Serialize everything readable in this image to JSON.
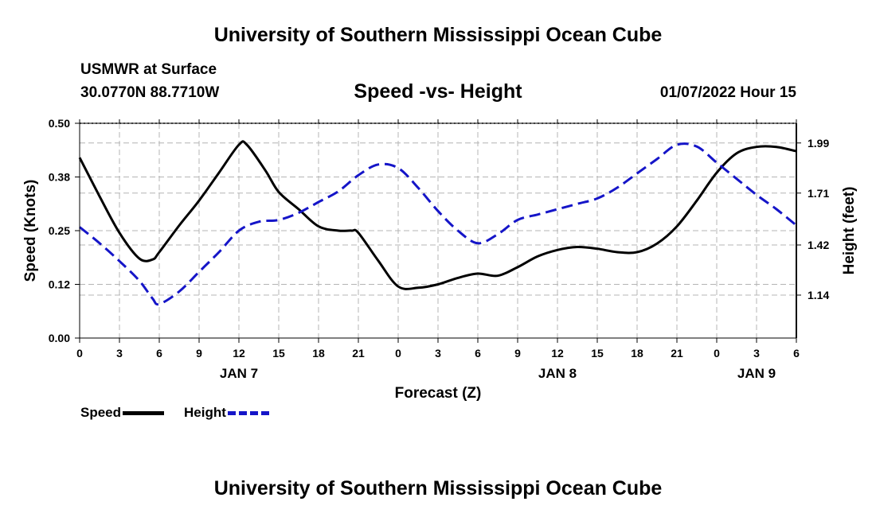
{
  "header": {
    "title": "University of Southern Mississippi Ocean Cube",
    "station": "USMWR at Surface",
    "coords": "30.0770N  88.7710W",
    "subtitle": "Speed -vs- Height",
    "datetime": "01/07/2022 Hour 15"
  },
  "footer": {
    "title": "University of Southern Mississippi Ocean Cube"
  },
  "legend": {
    "speed_label": "Speed",
    "height_label": "Height"
  },
  "colors": {
    "speed": "#000000",
    "height": "#1515c8",
    "grid": "#b4b4b4"
  },
  "chart_data": {
    "type": "line",
    "title": "Speed -vs- Height",
    "xlabel": "Forecast (Z)",
    "ylabel": "Speed (Knots)",
    "y2label": "Height (feet)",
    "grid": true,
    "x_hours_range": [
      0,
      54
    ],
    "x_ticks": [
      {
        "h": 0,
        "label": "0"
      },
      {
        "h": 3,
        "label": "3"
      },
      {
        "h": 6,
        "label": "6"
      },
      {
        "h": 9,
        "label": "9"
      },
      {
        "h": 12,
        "label": "12"
      },
      {
        "h": 15,
        "label": "15"
      },
      {
        "h": 18,
        "label": "18"
      },
      {
        "h": 21,
        "label": "21"
      },
      {
        "h": 24,
        "label": "0"
      },
      {
        "h": 27,
        "label": "3"
      },
      {
        "h": 30,
        "label": "6"
      },
      {
        "h": 33,
        "label": "9"
      },
      {
        "h": 36,
        "label": "12"
      },
      {
        "h": 39,
        "label": "15"
      },
      {
        "h": 42,
        "label": "18"
      },
      {
        "h": 45,
        "label": "21"
      },
      {
        "h": 48,
        "label": "0"
      },
      {
        "h": 51,
        "label": "3"
      },
      {
        "h": 54,
        "label": "6"
      }
    ],
    "day_labels": [
      {
        "h": 12,
        "label": "JAN 7"
      },
      {
        "h": 36,
        "label": "JAN 8"
      },
      {
        "h": 51,
        "label": "JAN 9"
      }
    ],
    "ylim": [
      0,
      0.5
    ],
    "y_ticks": [
      {
        "v": 0.0,
        "label": "0.00"
      },
      {
        "v": 0.125,
        "label": "0.12"
      },
      {
        "v": 0.25,
        "label": "0.25"
      },
      {
        "v": 0.375,
        "label": "0.38"
      },
      {
        "v": 0.5,
        "label": "0.50"
      }
    ],
    "y2lim": [
      0.9,
      2.1
    ],
    "y2_ticks": [
      {
        "v": 1.14,
        "label": "1.14"
      },
      {
        "v": 1.42,
        "label": "1.42"
      },
      {
        "v": 1.71,
        "label": "1.71"
      },
      {
        "v": 1.99,
        "label": "1.99"
      }
    ],
    "series": [
      {
        "name": "Speed",
        "axis": "left",
        "x": [
          0,
          1.5,
          3,
          4.5,
          5.5,
          6,
          7.5,
          9,
          10.5,
          12,
          12.6,
          14,
          15,
          16.5,
          18,
          19.5,
          20.5,
          21,
          22.5,
          24,
          25.5,
          27,
          28.5,
          30,
          31.5,
          33,
          34.5,
          36,
          37.5,
          39,
          40.5,
          42,
          43.5,
          45,
          46.5,
          48,
          49.5,
          51,
          52.5,
          54
        ],
        "values": [
          0.42,
          0.33,
          0.245,
          0.185,
          0.183,
          0.2,
          0.262,
          0.32,
          0.385,
          0.45,
          0.45,
          0.39,
          0.34,
          0.3,
          0.26,
          0.25,
          0.25,
          0.245,
          0.18,
          0.12,
          0.117,
          0.125,
          0.14,
          0.15,
          0.145,
          0.165,
          0.19,
          0.205,
          0.212,
          0.208,
          0.2,
          0.2,
          0.22,
          0.26,
          0.32,
          0.385,
          0.43,
          0.445,
          0.445,
          0.435
        ]
      },
      {
        "name": "Height",
        "axis": "right",
        "x": [
          0,
          1.5,
          3,
          4.5,
          5.5,
          6,
          7.5,
          9,
          10.5,
          12,
          13.5,
          15,
          16.5,
          18,
          19.5,
          21,
          22.5,
          24,
          25.5,
          27,
          28.5,
          30,
          31.5,
          33,
          34.5,
          36,
          37.5,
          39,
          40.5,
          42,
          43.5,
          45,
          46.5,
          48,
          49.5,
          51,
          52.5,
          54
        ],
        "values": [
          1.52,
          1.43,
          1.33,
          1.22,
          1.12,
          1.09,
          1.16,
          1.27,
          1.38,
          1.5,
          1.55,
          1.56,
          1.6,
          1.66,
          1.72,
          1.81,
          1.87,
          1.85,
          1.74,
          1.61,
          1.5,
          1.43,
          1.48,
          1.56,
          1.59,
          1.62,
          1.65,
          1.68,
          1.74,
          1.82,
          1.9,
          1.98,
          1.97,
          1.88,
          1.79,
          1.7,
          1.62,
          1.53
        ]
      }
    ]
  }
}
